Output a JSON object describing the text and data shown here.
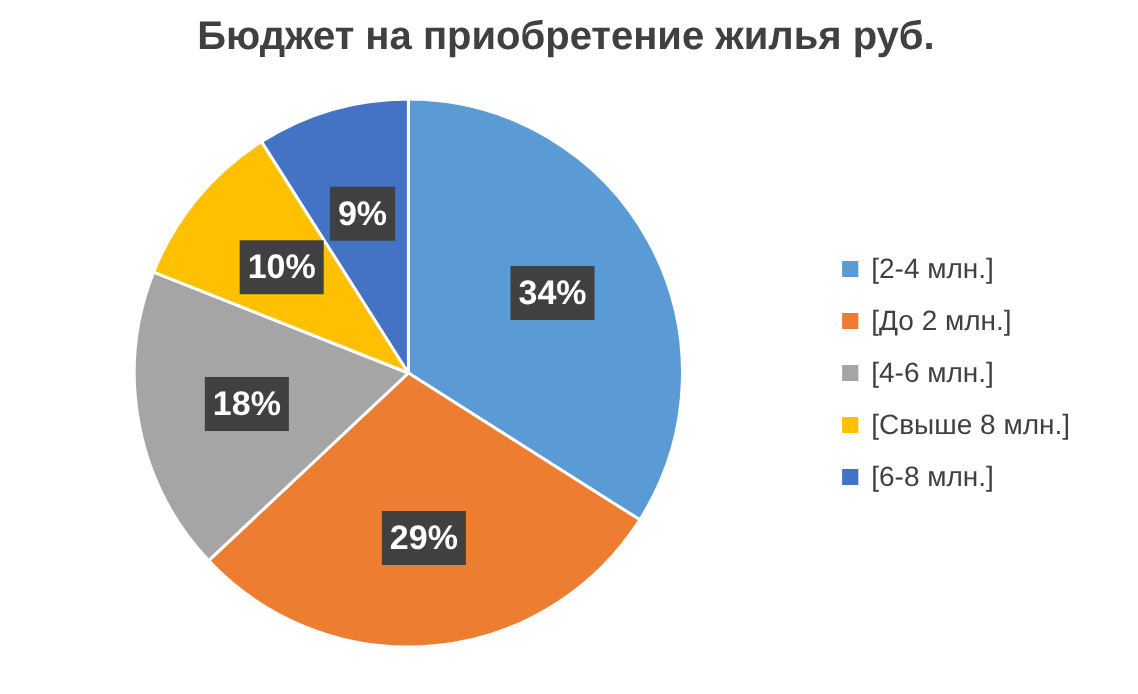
{
  "chart_data": {
    "type": "pie",
    "title": "Бюджет на приобретение жилья руб.",
    "categories": [
      "[2-4 млн.]",
      "[До 2 млн.]",
      "[4-6 млн.]",
      "[Свыше 8 млн.]",
      "[6-8 млн.]"
    ],
    "values": [
      34,
      29,
      18,
      10,
      9
    ],
    "colors": [
      "#5b9bd5",
      "#ed7d31",
      "#a5a5a5",
      "#ffc000",
      "#4472c4"
    ],
    "value_labels": [
      "34%",
      "29%",
      "18%",
      "10%",
      "9%"
    ],
    "legend": "right"
  }
}
